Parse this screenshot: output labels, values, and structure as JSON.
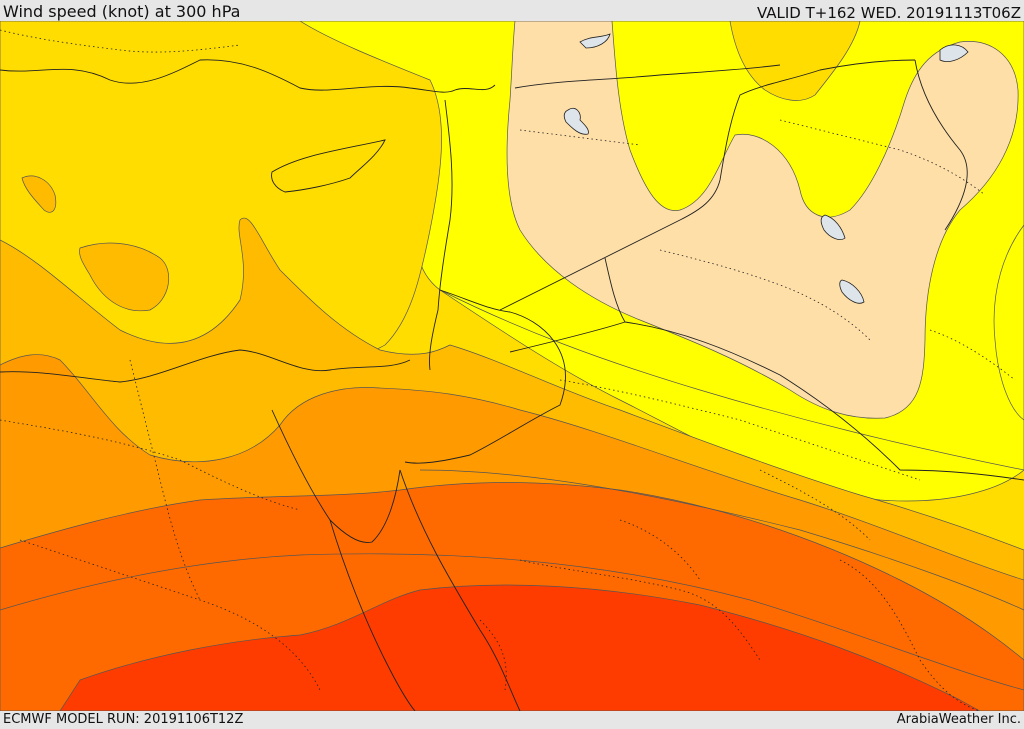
{
  "header": {
    "title": "Wind speed (knot) at 300 hPa",
    "valid": "VALID T+162 WED. 20191113T06Z"
  },
  "footer": {
    "model_run": "ECMWF MODEL RUN: 20191106T12Z",
    "credit": "ArabiaWeather Inc."
  },
  "map": {
    "palette": {
      "light": "#ffdfa8",
      "yellow": "#ffff00",
      "gold": "#ffdd00",
      "amber": "#ffbb00",
      "orange": "#ff9a00",
      "dark_orange": "#ff6a00",
      "red_orange": "#ff3c00",
      "water": "#dde4ea"
    }
  }
}
